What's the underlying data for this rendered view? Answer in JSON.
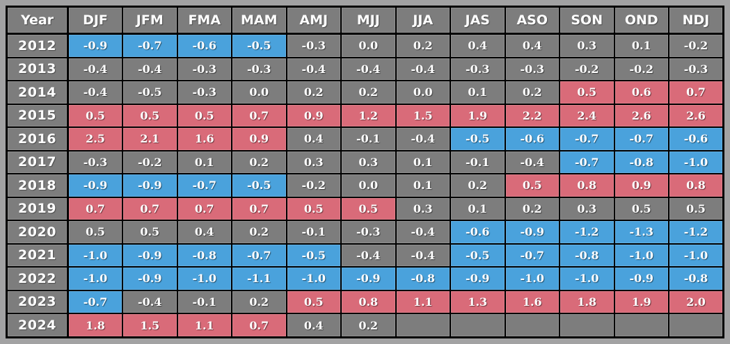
{
  "page": {
    "background_color": "#A2A2A3",
    "border_color": "#000000",
    "text_color": "#FFFFFF"
  },
  "colors": {
    "cold": "#4AA2DC",
    "warm": "#D96B79",
    "neutral": "#7D7D7D"
  },
  "chart_data": {
    "type": "table",
    "columns": [
      "Year",
      "DJF",
      "JFM",
      "FMA",
      "MAM",
      "AMJ",
      "MJJ",
      "JJA",
      "JAS",
      "ASO",
      "SON",
      "OND",
      "NDJ"
    ],
    "rows": [
      {
        "year": "2012",
        "values": [
          "-0.9",
          "-0.7",
          "-0.6",
          "-0.5",
          "-0.3",
          "0.0",
          "0.2",
          "0.4",
          "0.4",
          "0.3",
          "0.1",
          "-0.2"
        ],
        "phases": [
          "cold",
          "cold",
          "cold",
          "cold",
          "neutral",
          "neutral",
          "neutral",
          "neutral",
          "neutral",
          "neutral",
          "neutral",
          "neutral"
        ]
      },
      {
        "year": "2013",
        "values": [
          "-0.4",
          "-0.4",
          "-0.3",
          "-0.3",
          "-0.4",
          "-0.4",
          "-0.4",
          "-0.3",
          "-0.3",
          "-0.2",
          "-0.2",
          "-0.3"
        ],
        "phases": [
          "neutral",
          "neutral",
          "neutral",
          "neutral",
          "neutral",
          "neutral",
          "neutral",
          "neutral",
          "neutral",
          "neutral",
          "neutral",
          "neutral"
        ]
      },
      {
        "year": "2014",
        "values": [
          "-0.4",
          "-0.5",
          "-0.3",
          "0.0",
          "0.2",
          "0.2",
          "0.0",
          "0.1",
          "0.2",
          "0.5",
          "0.6",
          "0.7"
        ],
        "phases": [
          "neutral",
          "neutral",
          "neutral",
          "neutral",
          "neutral",
          "neutral",
          "neutral",
          "neutral",
          "neutral",
          "warm",
          "warm",
          "warm"
        ]
      },
      {
        "year": "2015",
        "values": [
          "0.5",
          "0.5",
          "0.5",
          "0.7",
          "0.9",
          "1.2",
          "1.5",
          "1.9",
          "2.2",
          "2.4",
          "2.6",
          "2.6"
        ],
        "phases": [
          "warm",
          "warm",
          "warm",
          "warm",
          "warm",
          "warm",
          "warm",
          "warm",
          "warm",
          "warm",
          "warm",
          "warm"
        ]
      },
      {
        "year": "2016",
        "values": [
          "2.5",
          "2.1",
          "1.6",
          "0.9",
          "0.4",
          "-0.1",
          "-0.4",
          "-0.5",
          "-0.6",
          "-0.7",
          "-0.7",
          "-0.6"
        ],
        "phases": [
          "warm",
          "warm",
          "warm",
          "warm",
          "neutral",
          "neutral",
          "neutral",
          "cold",
          "cold",
          "cold",
          "cold",
          "cold"
        ]
      },
      {
        "year": "2017",
        "values": [
          "-0.3",
          "-0.2",
          "0.1",
          "0.2",
          "0.3",
          "0.3",
          "0.1",
          "-0.1",
          "-0.4",
          "-0.7",
          "-0.8",
          "-1.0"
        ],
        "phases": [
          "neutral",
          "neutral",
          "neutral",
          "neutral",
          "neutral",
          "neutral",
          "neutral",
          "neutral",
          "neutral",
          "cold",
          "cold",
          "cold"
        ]
      },
      {
        "year": "2018",
        "values": [
          "-0.9",
          "-0.9",
          "-0.7",
          "-0.5",
          "-0.2",
          "0.0",
          "0.1",
          "0.2",
          "0.5",
          "0.8",
          "0.9",
          "0.8"
        ],
        "phases": [
          "cold",
          "cold",
          "cold",
          "cold",
          "neutral",
          "neutral",
          "neutral",
          "neutral",
          "warm",
          "warm",
          "warm",
          "warm"
        ]
      },
      {
        "year": "2019",
        "values": [
          "0.7",
          "0.7",
          "0.7",
          "0.7",
          "0.5",
          "0.5",
          "0.3",
          "0.1",
          "0.2",
          "0.3",
          "0.5",
          "0.5"
        ],
        "phases": [
          "warm",
          "warm",
          "warm",
          "warm",
          "warm",
          "warm",
          "neutral",
          "neutral",
          "neutral",
          "neutral",
          "neutral",
          "neutral"
        ]
      },
      {
        "year": "2020",
        "values": [
          "0.5",
          "0.5",
          "0.4",
          "0.2",
          "-0.1",
          "-0.3",
          "-0.4",
          "-0.6",
          "-0.9",
          "-1.2",
          "-1.3",
          "-1.2"
        ],
        "phases": [
          "neutral",
          "neutral",
          "neutral",
          "neutral",
          "neutral",
          "neutral",
          "neutral",
          "cold",
          "cold",
          "cold",
          "cold",
          "cold"
        ]
      },
      {
        "year": "2021",
        "values": [
          "-1.0",
          "-0.9",
          "-0.8",
          "-0.7",
          "-0.5",
          "-0.4",
          "-0.4",
          "-0.5",
          "-0.7",
          "-0.8",
          "-1.0",
          "-1.0"
        ],
        "phases": [
          "cold",
          "cold",
          "cold",
          "cold",
          "cold",
          "neutral",
          "neutral",
          "cold",
          "cold",
          "cold",
          "cold",
          "cold"
        ]
      },
      {
        "year": "2022",
        "values": [
          "-1.0",
          "-0.9",
          "-1.0",
          "-1.1",
          "-1.0",
          "-0.9",
          "-0.8",
          "-0.9",
          "-1.0",
          "-1.0",
          "-0.9",
          "-0.8"
        ],
        "phases": [
          "cold",
          "cold",
          "cold",
          "cold",
          "cold",
          "cold",
          "cold",
          "cold",
          "cold",
          "cold",
          "cold",
          "cold"
        ]
      },
      {
        "year": "2023",
        "values": [
          "-0.7",
          "-0.4",
          "-0.1",
          "0.2",
          "0.5",
          "0.8",
          "1.1",
          "1.3",
          "1.6",
          "1.8",
          "1.9",
          "2.0"
        ],
        "phases": [
          "cold",
          "neutral",
          "neutral",
          "neutral",
          "warm",
          "warm",
          "warm",
          "warm",
          "warm",
          "warm",
          "warm",
          "warm"
        ]
      },
      {
        "year": "2024",
        "values": [
          "1.8",
          "1.5",
          "1.1",
          "0.7",
          "0.4",
          "0.2",
          "",
          "",
          "",
          "",
          "",
          ""
        ],
        "phases": [
          "warm",
          "warm",
          "warm",
          "warm",
          "neutral",
          "neutral",
          "neutral",
          "neutral",
          "neutral",
          "neutral",
          "neutral",
          "neutral"
        ]
      }
    ]
  }
}
